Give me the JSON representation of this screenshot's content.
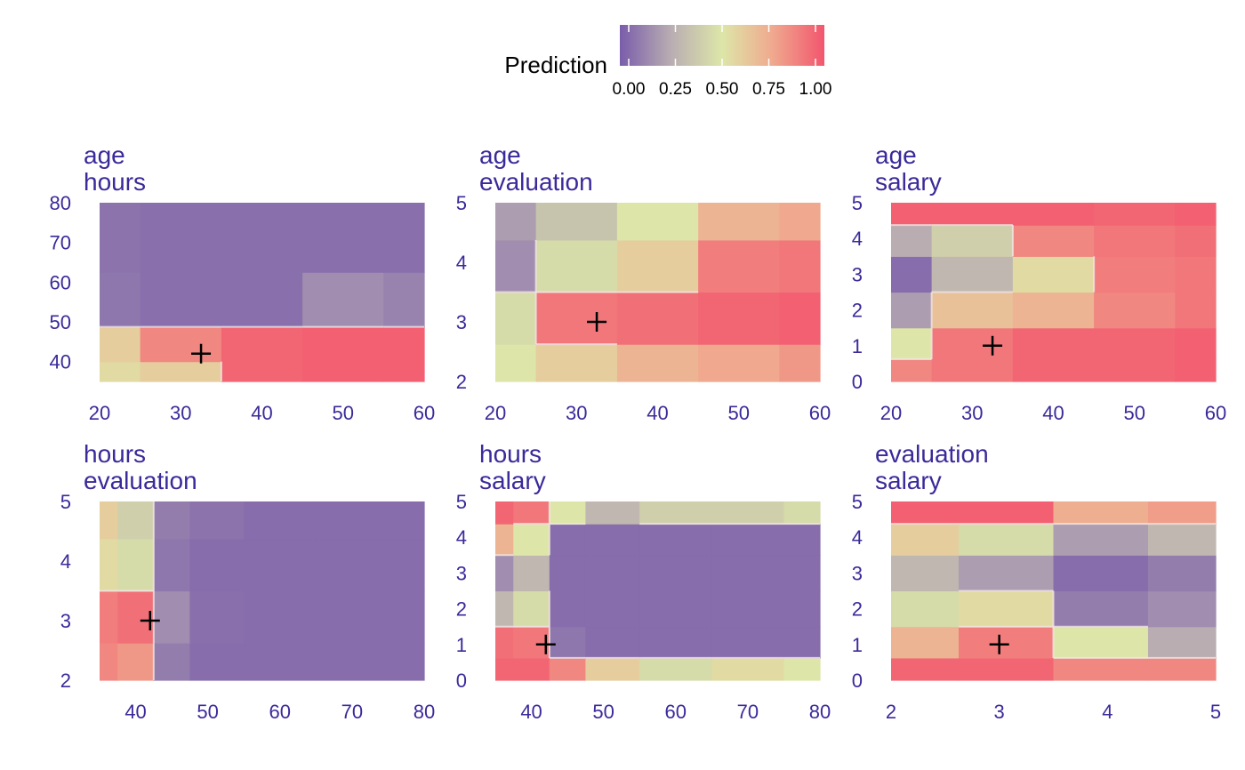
{
  "legend": {
    "title": "Prediction",
    "ticks": [
      "0.00",
      "0.25",
      "0.50",
      "0.75",
      "1.00"
    ],
    "stops": [
      0,
      0.25,
      0.5,
      0.75,
      1
    ],
    "colors": [
      "#7a5daa",
      "#b9adb2",
      "#dde6a8",
      "#f0a88e",
      "#f2566e"
    ],
    "placement": "top"
  },
  "chart_data": [
    {
      "type": "heatmap",
      "title": [
        "age",
        "hours"
      ],
      "xlim": [
        20,
        60
      ],
      "ylim": [
        35,
        80
      ],
      "xticks": [
        20,
        30,
        40,
        50,
        60
      ],
      "yticks": [
        40,
        50,
        60,
        70,
        80
      ],
      "marker": [
        32.5,
        42
      ],
      "x": [
        20,
        30,
        40,
        50,
        60
      ],
      "y": [
        37.5,
        42.5,
        55,
        70
      ],
      "z": [
        [
          0.55,
          0.6,
          0.95,
          0.97,
          0.97
        ],
        [
          0.6,
          0.85,
          0.95,
          0.97,
          0.97
        ],
        [
          0.08,
          0.06,
          0.06,
          0.15,
          0.12
        ],
        [
          0.07,
          0.06,
          0.06,
          0.06,
          0.06
        ]
      ]
    },
    {
      "type": "heatmap",
      "title": [
        "age",
        "evaluation"
      ],
      "xlim": [
        20,
        60
      ],
      "ylim": [
        2,
        5
      ],
      "xticks": [
        20,
        30,
        40,
        50,
        60
      ],
      "yticks": [
        2,
        3,
        4,
        5
      ],
      "marker": [
        32.5,
        3
      ],
      "x": [
        20,
        30,
        40,
        50,
        60
      ],
      "y": [
        2.25,
        3,
        4,
        4.75
      ],
      "z": [
        [
          0.5,
          0.6,
          0.7,
          0.75,
          0.8
        ],
        [
          0.45,
          0.9,
          0.92,
          0.95,
          0.97
        ],
        [
          0.15,
          0.45,
          0.6,
          0.88,
          0.9
        ],
        [
          0.2,
          0.35,
          0.5,
          0.7,
          0.75
        ]
      ]
    },
    {
      "type": "heatmap",
      "title": [
        "age",
        "salary"
      ],
      "xlim": [
        20,
        60
      ],
      "ylim": [
        0,
        5
      ],
      "xticks": [
        20,
        30,
        40,
        50,
        60
      ],
      "yticks": [
        0,
        1,
        2,
        3,
        4,
        5
      ],
      "marker": [
        32.5,
        1
      ],
      "x": [
        20,
        30,
        40,
        50,
        60
      ],
      "y": [
        0.25,
        1,
        2,
        3,
        4,
        4.75
      ],
      "z": [
        [
          0.85,
          0.9,
          0.95,
          0.95,
          0.97
        ],
        [
          0.5,
          0.9,
          0.95,
          0.95,
          0.97
        ],
        [
          0.2,
          0.65,
          0.7,
          0.85,
          0.9
        ],
        [
          0.05,
          0.3,
          0.55,
          0.88,
          0.9
        ],
        [
          0.25,
          0.4,
          0.85,
          0.9,
          0.92
        ],
        [
          0.97,
          0.97,
          0.97,
          0.95,
          0.97
        ]
      ]
    },
    {
      "type": "heatmap",
      "title": [
        "hours",
        "evaluation"
      ],
      "xlim": [
        35,
        80
      ],
      "ylim": [
        2,
        5
      ],
      "xticks": [
        40,
        50,
        60,
        70,
        80
      ],
      "yticks": [
        2,
        3,
        4,
        5
      ],
      "marker": [
        42,
        3
      ],
      "x": [
        35,
        40,
        45,
        50,
        60,
        70,
        80
      ],
      "y": [
        2.25,
        3,
        4,
        4.75
      ],
      "z": [
        [
          0.85,
          0.8,
          0.1,
          0.05,
          0.05,
          0.05,
          0.05
        ],
        [
          0.88,
          0.92,
          0.15,
          0.06,
          0.05,
          0.05,
          0.05
        ],
        [
          0.55,
          0.45,
          0.08,
          0.05,
          0.05,
          0.05,
          0.05
        ],
        [
          0.6,
          0.4,
          0.1,
          0.07,
          0.05,
          0.05,
          0.05
        ]
      ]
    },
    {
      "type": "heatmap",
      "title": [
        "hours",
        "salary"
      ],
      "xlim": [
        35,
        80
      ],
      "ylim": [
        0,
        5
      ],
      "xticks": [
        40,
        50,
        60,
        70,
        80
      ],
      "yticks": [
        0,
        1,
        2,
        3,
        4,
        5
      ],
      "marker": [
        42,
        1
      ],
      "x": [
        35,
        40,
        45,
        50,
        60,
        70,
        80
      ],
      "y": [
        0.25,
        1,
        2,
        3,
        4,
        4.75
      ],
      "z": [
        [
          0.95,
          0.95,
          0.85,
          0.6,
          0.45,
          0.55,
          0.5
        ],
        [
          0.92,
          0.9,
          0.08,
          0.05,
          0.05,
          0.05,
          0.05
        ],
        [
          0.3,
          0.45,
          0.05,
          0.05,
          0.05,
          0.05,
          0.05
        ],
        [
          0.15,
          0.3,
          0.05,
          0.05,
          0.05,
          0.05,
          0.05
        ],
        [
          0.7,
          0.5,
          0.05,
          0.05,
          0.05,
          0.05,
          0.05
        ],
        [
          0.95,
          0.9,
          0.5,
          0.3,
          0.4,
          0.4,
          0.45
        ]
      ]
    },
    {
      "type": "heatmap",
      "title": [
        "evaluation",
        "salary"
      ],
      "xlim": [
        2,
        5
      ],
      "ylim": [
        0,
        5
      ],
      "xticks": [
        2,
        3,
        4,
        5
      ],
      "yticks": [
        0,
        1,
        2,
        3,
        4,
        5
      ],
      "marker": [
        3,
        1
      ],
      "x": [
        2.25,
        3,
        4,
        4.75
      ],
      "y": [
        0.25,
        1,
        2,
        3,
        4,
        4.75
      ],
      "z": [
        [
          0.95,
          0.95,
          0.85,
          0.85
        ],
        [
          0.7,
          0.88,
          0.5,
          0.25
        ],
        [
          0.45,
          0.55,
          0.1,
          0.15
        ],
        [
          0.3,
          0.2,
          0.05,
          0.1
        ],
        [
          0.6,
          0.45,
          0.2,
          0.3
        ],
        [
          0.97,
          0.97,
          0.72,
          0.78
        ]
      ]
    }
  ]
}
